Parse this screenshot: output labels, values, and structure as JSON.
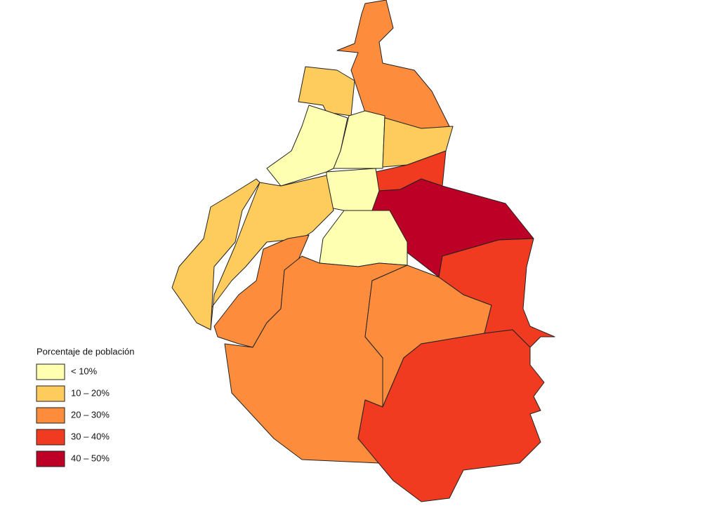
{
  "legend": {
    "title": "Porcentaje de población",
    "items": [
      {
        "label": "< 10%",
        "color": "#ffffb2"
      },
      {
        "label": "10 – 20%",
        "color": "#fecc5c"
      },
      {
        "label": "20 – 30%",
        "color": "#fd8d3c"
      },
      {
        "label": "30 – 40%",
        "color": "#f03b20"
      },
      {
        "label": "40 – 50%",
        "color": "#bd0026"
      }
    ]
  }
}
